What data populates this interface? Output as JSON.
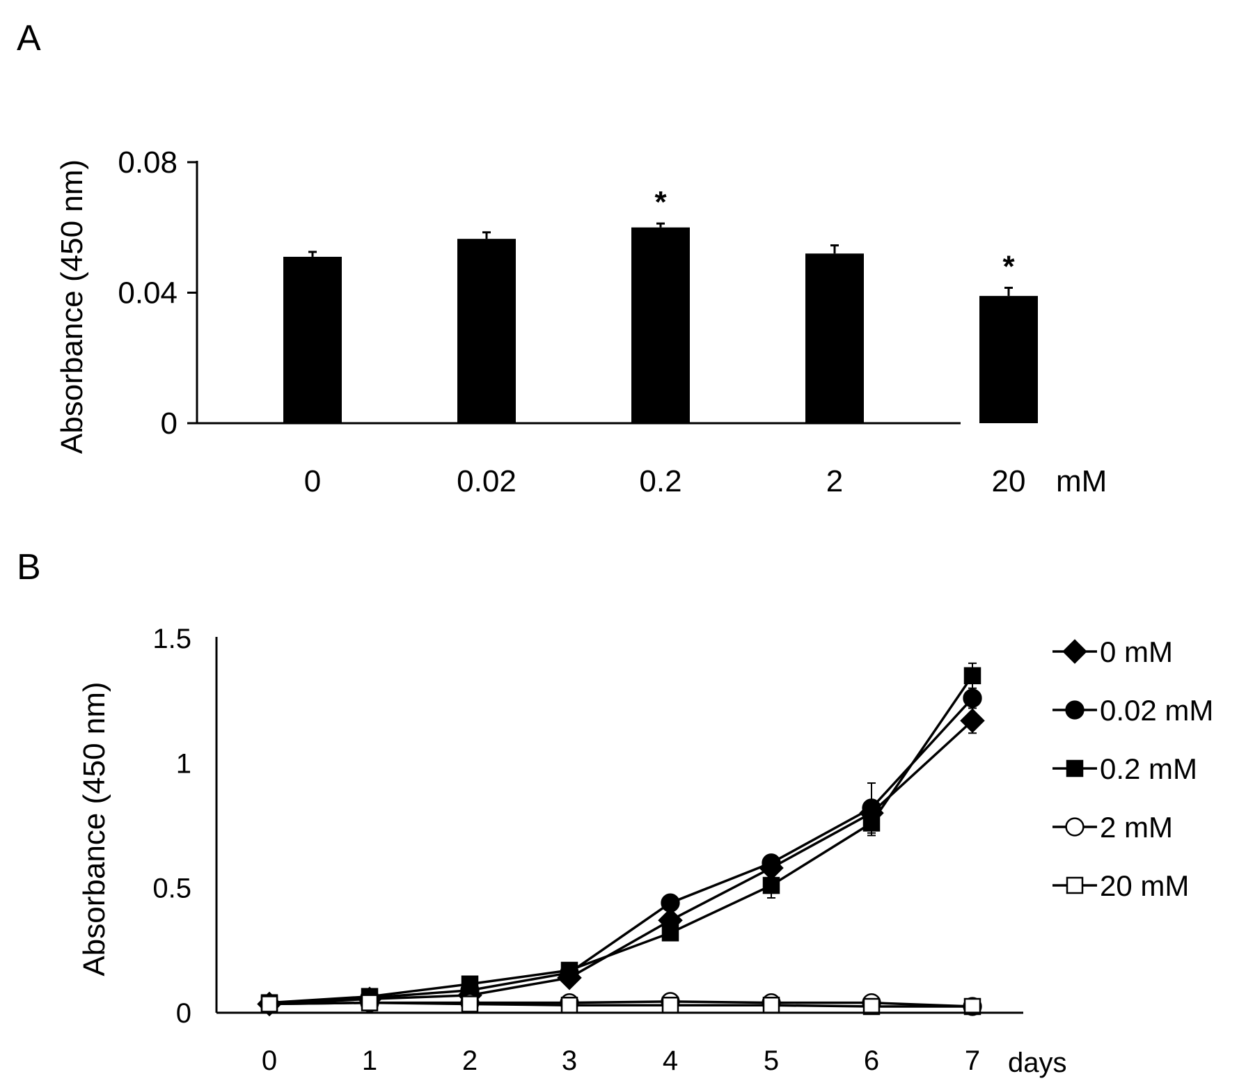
{
  "panels": {
    "a": {
      "label": "A"
    },
    "b": {
      "label": "B"
    }
  },
  "chart_data": [
    {
      "type": "bar",
      "panel": "A",
      "title": "",
      "xlabel": "",
      "x_unit": "mM",
      "ylabel": "Absorbance (450 nm)",
      "ylim": [
        0,
        0.08
      ],
      "yticks": [
        0,
        0.04,
        0.08
      ],
      "ytick_labels": [
        "0",
        "0.04",
        "0.08"
      ],
      "categories": [
        "0",
        "0.02",
        "0.2",
        "2",
        "20"
      ],
      "values": [
        0.051,
        0.0565,
        0.06,
        0.052,
        0.039
      ],
      "errors": [
        0.0015,
        0.002,
        0.0012,
        0.0025,
        0.0025
      ],
      "significance": [
        "",
        "",
        "*",
        "",
        "*"
      ],
      "bar_color": "#000000"
    },
    {
      "type": "line",
      "panel": "B",
      "title": "",
      "xlabel": "",
      "x_unit": "days",
      "ylabel": "Absorbance (450 nm)",
      "ylim": [
        0,
        1.5
      ],
      "xlim": [
        -0.5,
        7.5
      ],
      "yticks": [
        0,
        0.5,
        1,
        1.5
      ],
      "ytick_labels": [
        "0",
        "0.5",
        "1",
        "1.5"
      ],
      "x": [
        0,
        1,
        2,
        3,
        4,
        5,
        6,
        7
      ],
      "series": [
        {
          "name": "0 mM",
          "marker": "diamond",
          "filled": true,
          "values": [
            0.035,
            0.055,
            0.07,
            0.14,
            0.37,
            0.58,
            0.8,
            1.17
          ],
          "errors": [
            0.005,
            0.005,
            0.008,
            0.01,
            0.02,
            0.03,
            0.04,
            0.05
          ]
        },
        {
          "name": "0.02 mM",
          "marker": "circle",
          "filled": true,
          "values": [
            0.035,
            0.06,
            0.09,
            0.16,
            0.44,
            0.6,
            0.82,
            1.26
          ],
          "errors": [
            0.005,
            0.005,
            0.008,
            0.01,
            0.03,
            0.03,
            0.1,
            0.03
          ]
        },
        {
          "name": "0.2 mM",
          "marker": "square",
          "filled": true,
          "values": [
            0.04,
            0.065,
            0.115,
            0.17,
            0.32,
            0.51,
            0.76,
            1.35
          ],
          "errors": [
            0.005,
            0.005,
            0.01,
            0.012,
            0.02,
            0.05,
            0.05,
            0.05
          ]
        },
        {
          "name": "2 mM",
          "marker": "circle",
          "filled": false,
          "values": [
            0.035,
            0.04,
            0.04,
            0.04,
            0.045,
            0.04,
            0.04,
            0.025
          ],
          "errors": [
            0.003,
            0.003,
            0.003,
            0.003,
            0.003,
            0.003,
            0.003,
            0.003
          ]
        },
        {
          "name": "20 mM",
          "marker": "square",
          "filled": false,
          "values": [
            0.035,
            0.04,
            0.035,
            0.03,
            0.03,
            0.03,
            0.025,
            0.025
          ],
          "errors": [
            0.003,
            0.003,
            0.003,
            0.003,
            0.003,
            0.003,
            0.003,
            0.003
          ]
        }
      ]
    }
  ]
}
